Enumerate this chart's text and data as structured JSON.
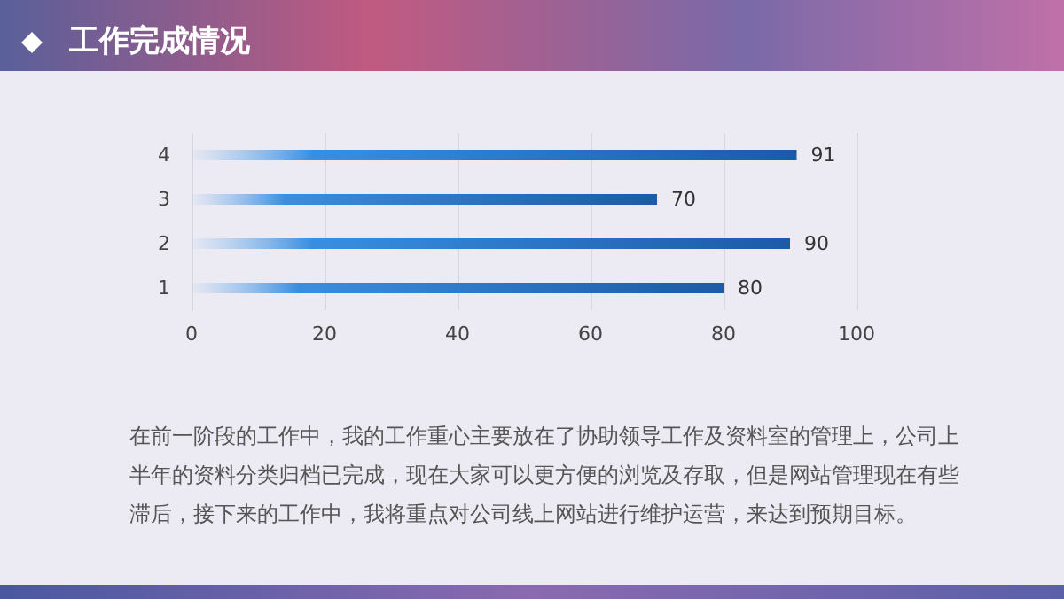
{
  "chart_data": {
    "type": "bar",
    "orientation": "horizontal",
    "title": "工作完成情况",
    "categories": [
      "4",
      "3",
      "2",
      "1"
    ],
    "values": [
      91,
      70,
      90,
      80
    ],
    "color": "#1c5aa6",
    "xlim": [
      0,
      100
    ],
    "xticks": [
      0,
      20,
      40,
      60,
      80,
      100
    ],
    "grid": "x",
    "data_labels": true,
    "annotations": [
      "在前一阶段的工作中，我的工作重心主要放在了协助领导工作及资料室的管理上，公司上半年的资料分类归档已完成，现在大家可以更方便的浏览及存取，但是网站管理现在有些滞后，接下来的工作中，我将重点对公司线上网站进行维护运营，来达到预期目标。"
    ]
  }
}
